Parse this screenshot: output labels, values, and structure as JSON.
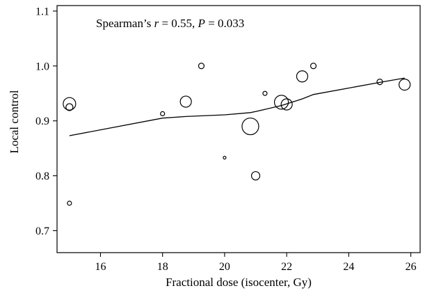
{
  "chart_data": {
    "type": "scatter",
    "xlabel": "Fractional dose (isocenter, Gy)",
    "ylabel": "Local control",
    "xlim": [
      14.6,
      26.3
    ],
    "ylim": [
      0.66,
      1.11
    ],
    "x_ticks": [
      16,
      18,
      20,
      22,
      24,
      26
    ],
    "y_ticks": [
      0.7,
      0.8,
      0.9,
      1.0,
      1.1
    ],
    "y_tick_labels": [
      "0.7",
      "0.8",
      "0.9",
      "1.0",
      "1.1"
    ],
    "grid": false,
    "marker_style": "open-circle-sized-by-weight",
    "annotation": {
      "prefix": "Spearman’s ",
      "r_symbol": "r",
      "r_text": " = 0.55, ",
      "p_symbol": "P",
      "p_text": " = 0.033"
    },
    "points": [
      {
        "x": 15.0,
        "y": 0.931,
        "size": 9
      },
      {
        "x": 15.0,
        "y": 0.925,
        "size": 5
      },
      {
        "x": 15.0,
        "y": 0.75,
        "size": 3
      },
      {
        "x": 18.0,
        "y": 0.913,
        "size": 3
      },
      {
        "x": 18.75,
        "y": 0.935,
        "size": 8
      },
      {
        "x": 19.25,
        "y": 1.0,
        "size": 4
      },
      {
        "x": 20.0,
        "y": 0.833,
        "size": 2
      },
      {
        "x": 20.83,
        "y": 0.89,
        "size": 12
      },
      {
        "x": 21.0,
        "y": 0.8,
        "size": 6
      },
      {
        "x": 21.3,
        "y": 0.95,
        "size": 3
      },
      {
        "x": 21.83,
        "y": 0.934,
        "size": 10
      },
      {
        "x": 22.0,
        "y": 0.93,
        "size": 8
      },
      {
        "x": 22.5,
        "y": 0.981,
        "size": 8
      },
      {
        "x": 22.86,
        "y": 1.0,
        "size": 4
      },
      {
        "x": 25.0,
        "y": 0.971,
        "size": 4
      },
      {
        "x": 25.8,
        "y": 0.966,
        "size": 8
      }
    ],
    "fit_line": {
      "x": [
        15.0,
        18.0,
        18.75,
        20.0,
        20.83,
        21.0,
        21.83,
        22.0,
        22.5,
        22.86,
        25.0,
        25.8
      ],
      "y": [
        0.873,
        0.905,
        0.908,
        0.911,
        0.915,
        0.917,
        0.928,
        0.931,
        0.94,
        0.948,
        0.97,
        0.978
      ]
    }
  }
}
